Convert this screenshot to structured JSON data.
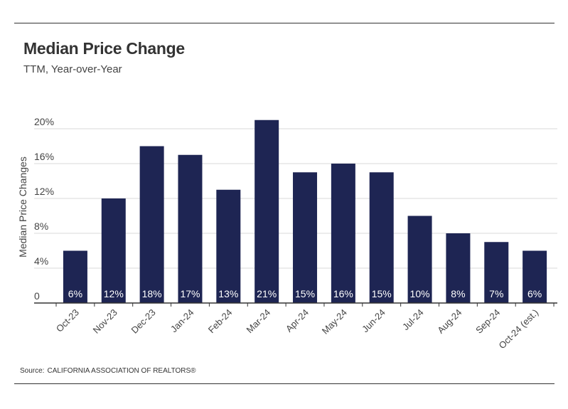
{
  "header": {
    "title": "Median Price Change",
    "subtitle": "TTM, Year-over-Year"
  },
  "footer": {
    "source_prefix": "Source:",
    "source_name": "CALIFORNIA ASSOCIATION OF REALTORS®"
  },
  "colors": {
    "bar": "#1e2553",
    "bar_label": "#ffffff",
    "grid": "#d9d9d9",
    "axis": "#333333",
    "text": "#444444"
  },
  "chart_data": {
    "type": "bar",
    "categories": [
      "Oct-23",
      "Nov-23",
      "Dec-23",
      "Jan-24",
      "Feb-24",
      "Mar-24",
      "Apr-24",
      "May-24",
      "Jun-24",
      "Jul-24",
      "Aug-24",
      "Sep-24",
      "Oct-24 (est.)"
    ],
    "values": [
      6,
      12,
      18,
      17,
      13,
      21,
      15,
      16,
      15,
      10,
      8,
      7,
      6
    ],
    "data_labels": [
      "6%",
      "12%",
      "18%",
      "17%",
      "13%",
      "21%",
      "15%",
      "16%",
      "15%",
      "10%",
      "8%",
      "7%",
      "6%"
    ],
    "ylabel": "Median Price Changes",
    "xlabel": "",
    "ylim": [
      0,
      21
    ],
    "yticks": [
      0,
      4,
      8,
      12,
      16,
      20
    ],
    "ytick_labels": [
      "0",
      "4%",
      "8%",
      "12%",
      "16%",
      "20%"
    ],
    "grid": true,
    "legend": "none"
  }
}
